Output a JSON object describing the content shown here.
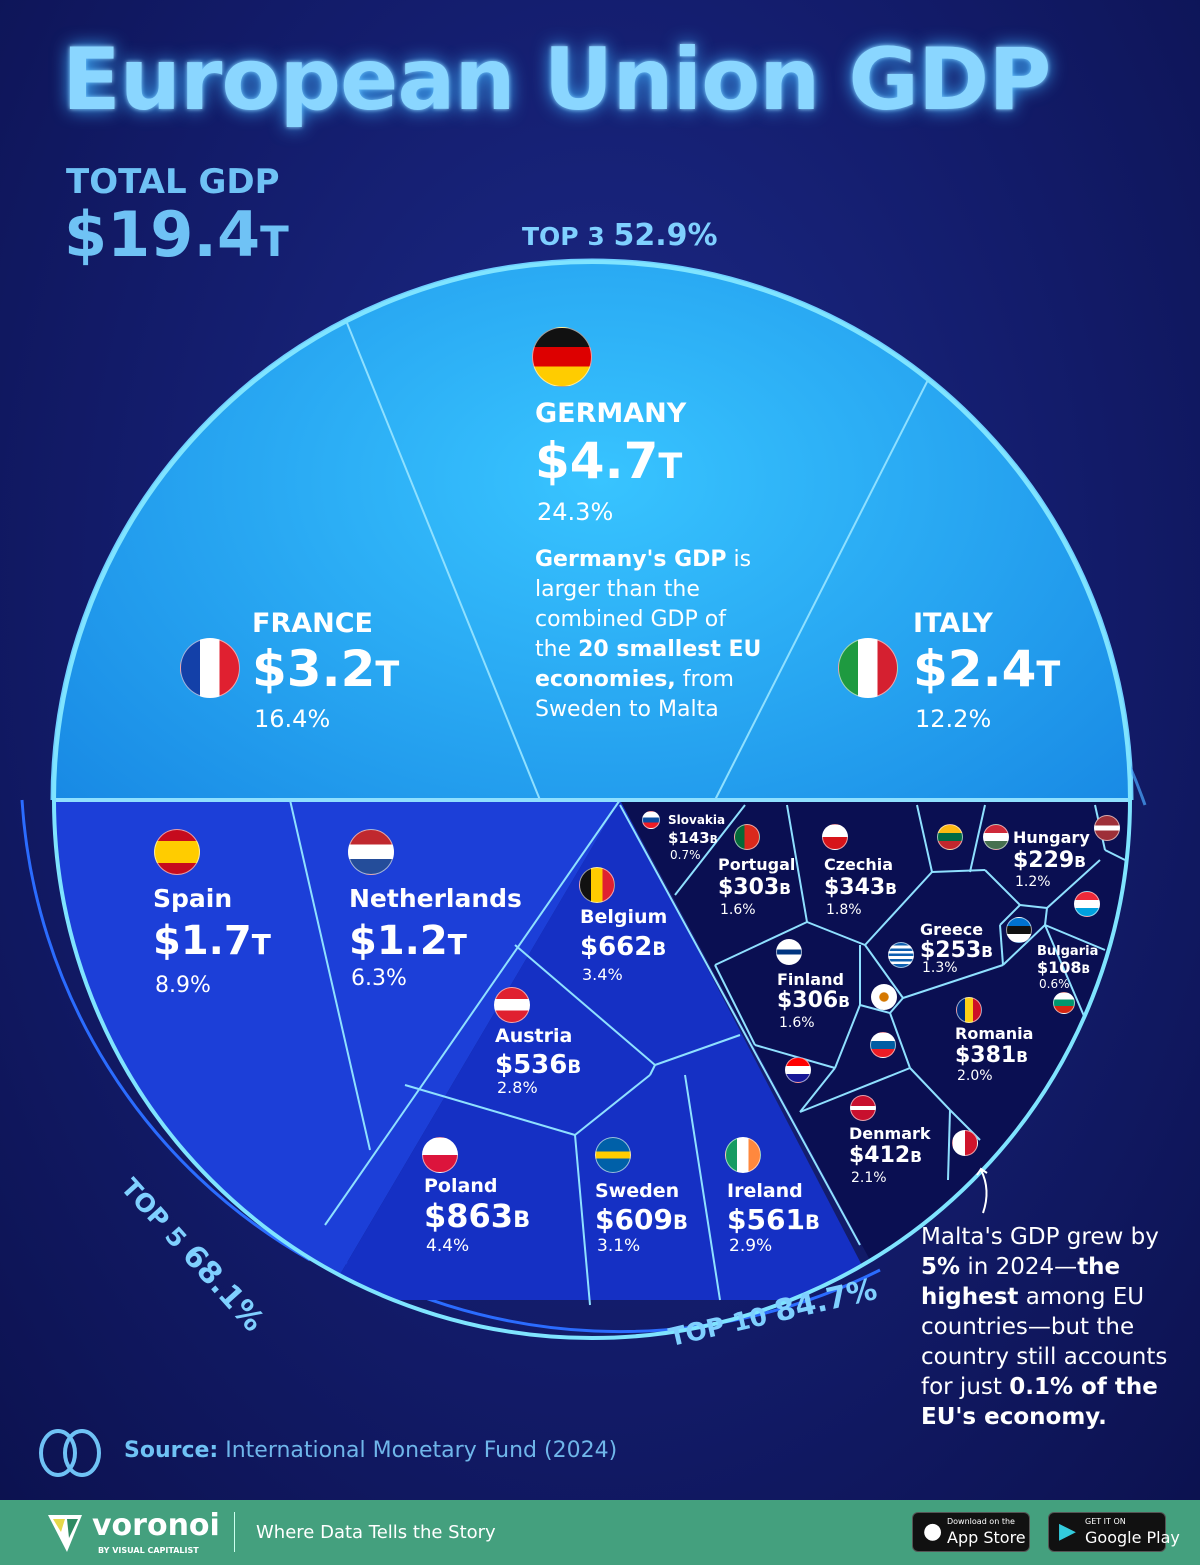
{
  "title": "European Union GDP",
  "total": {
    "label": "TOTAL GDP",
    "value": "$19.4",
    "unit": "T"
  },
  "arcs": {
    "top3": {
      "label": "TOP 3",
      "value": "52.9%"
    },
    "top5": {
      "label": "TOP 5",
      "value": "68.1%"
    },
    "top10": {
      "label": "TOP 10",
      "value": "84.7%"
    }
  },
  "notes": {
    "germany": [
      "Germany's GDP",
      " is larger than the combined GDP of the ",
      "20 smallest EU economies,",
      " from Sweden to Malta"
    ],
    "malta": [
      "Malta's GDP grew by ",
      "5%",
      " in 2024—",
      "the highest",
      " among EU countries—but the country still accounts for just ",
      "0.1% of the EU's economy."
    ]
  },
  "source": {
    "label": "Source:",
    "text": " International Monetary Fund (2024)"
  },
  "footer": {
    "brand": "voronoi",
    "brand_sub": "BY VISUAL CAPITALIST",
    "tagline": "Where Data Tells the Story",
    "appstore_small": "Download on the",
    "appstore": "App Store",
    "play_small": "GET IT ON",
    "play": "Google Play"
  },
  "colors": {
    "top3": "#1fa3ee",
    "top5": "#1c3fd8",
    "top10": "#1530c4",
    "rest": "#0a0f52",
    "line": "#8fe0ff"
  },
  "chart_data": {
    "type": "voronoi-treemap",
    "title": "European Union GDP",
    "unit": "USD",
    "countries": [
      {
        "name": "GERMANY",
        "value": "$4.7",
        "unit": "T",
        "share": "24.3%",
        "flag": "germany-flag"
      },
      {
        "name": "FRANCE",
        "value": "$3.2",
        "unit": "T",
        "share": "16.4%",
        "flag": "france-flag"
      },
      {
        "name": "ITALY",
        "value": "$2.4",
        "unit": "T",
        "share": "12.2%",
        "flag": "italy-flag"
      },
      {
        "name": "Spain",
        "value": "$1.7",
        "unit": "T",
        "share": "8.9%",
        "flag": "spain-flag"
      },
      {
        "name": "Netherlands",
        "value": "$1.2",
        "unit": "T",
        "share": "6.3%",
        "flag": "netherlands-flag"
      },
      {
        "name": "Belgium",
        "value": "$662",
        "unit": "B",
        "share": "3.4%",
        "flag": "belgium-flag"
      },
      {
        "name": "Austria",
        "value": "$536",
        "unit": "B",
        "share": "2.8%",
        "flag": "austria-flag"
      },
      {
        "name": "Poland",
        "value": "$863",
        "unit": "B",
        "share": "4.4%",
        "flag": "poland-flag"
      },
      {
        "name": "Sweden",
        "value": "$609",
        "unit": "B",
        "share": "3.1%",
        "flag": "sweden-flag"
      },
      {
        "name": "Ireland",
        "value": "$561",
        "unit": "B",
        "share": "2.9%",
        "flag": "ireland-flag"
      },
      {
        "name": "Denmark",
        "value": "$412",
        "unit": "B",
        "share": "2.1%",
        "flag": "denmark-flag"
      },
      {
        "name": "Romania",
        "value": "$381",
        "unit": "B",
        "share": "2.0%",
        "flag": "romania-flag"
      },
      {
        "name": "Czechia",
        "value": "$343",
        "unit": "B",
        "share": "1.8%",
        "flag": "czechia-flag"
      },
      {
        "name": "Finland",
        "value": "$306",
        "unit": "B",
        "share": "1.6%",
        "flag": "finland-flag"
      },
      {
        "name": "Portugal",
        "value": "$303",
        "unit": "B",
        "share": "1.6%",
        "flag": "portugal-flag"
      },
      {
        "name": "Greece",
        "value": "$253",
        "unit": "B",
        "share": "1.3%",
        "flag": "greece-flag"
      },
      {
        "name": "Hungary",
        "value": "$229",
        "unit": "B",
        "share": "1.2%",
        "flag": "hungary-flag"
      },
      {
        "name": "Slovakia",
        "value": "$143",
        "unit": "B",
        "share": "0.7%",
        "flag": "slovakia-flag"
      },
      {
        "name": "Bulgaria",
        "value": "$108",
        "unit": "B",
        "share": "0.6%",
        "flag": "bulgaria-flag"
      }
    ],
    "unlabeled_flags": [
      "lithuania-flag",
      "latvia-flag",
      "luxembourg-flag",
      "estonia-flag",
      "cyprus-flag",
      "slovenia-flag",
      "croatia-flag",
      "malta-flag"
    ]
  }
}
